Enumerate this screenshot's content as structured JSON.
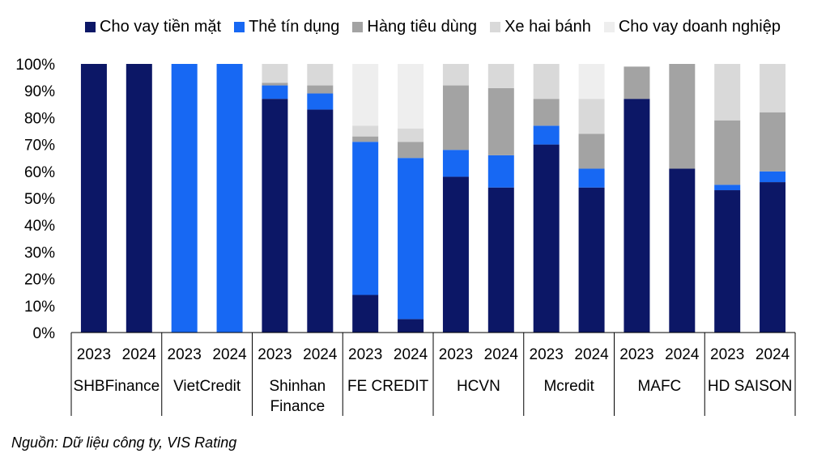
{
  "chart_data": {
    "type": "bar",
    "stacked": true,
    "groups": [
      "SHBFinance",
      "VietCredit",
      "Shinhan\nFinance",
      "FE CREDIT",
      "HCVN",
      "Mcredit",
      "MAFC",
      "HD SAISON"
    ],
    "years": [
      "2023",
      "2024"
    ],
    "yticks": [
      "0%",
      "10%",
      "20%",
      "30%",
      "40%",
      "50%",
      "60%",
      "70%",
      "80%",
      "90%",
      "100%"
    ],
    "ylim": [
      0,
      100
    ],
    "grid": false,
    "legend_position": "top",
    "series": [
      {
        "name": "Cho vay tiền mặt",
        "color": "#0c1766",
        "values": [
          100,
          100,
          0,
          0,
          87,
          83,
          14,
          5,
          58,
          54,
          70,
          54,
          87,
          61,
          53,
          56
        ]
      },
      {
        "name": "Thẻ tín dụng",
        "color": "#1768f3",
        "values": [
          0,
          0,
          100,
          100,
          5,
          6,
          57,
          60,
          10,
          12,
          7,
          7,
          0,
          0,
          2,
          4
        ]
      },
      {
        "name": "Hàng tiêu dùng",
        "color": "#a3a3a3",
        "values": [
          0,
          0,
          0,
          0,
          1,
          3,
          2,
          6,
          24,
          25,
          10,
          13,
          12,
          39,
          24,
          22
        ]
      },
      {
        "name": "Xe hai bánh",
        "color": "#d9d9d9",
        "values": [
          0,
          0,
          0,
          0,
          7,
          8,
          4,
          5,
          8,
          9,
          13,
          13,
          0,
          0,
          21,
          18
        ]
      },
      {
        "name": "Cho vay doanh nghiệp",
        "color": "#eeeeee",
        "values": [
          0,
          0,
          0,
          0,
          0,
          0,
          23,
          24,
          0,
          0,
          0,
          13,
          0,
          0,
          0,
          0
        ]
      }
    ]
  },
  "source_note": "Nguồn: Dữ liệu công ty, VIS Rating"
}
